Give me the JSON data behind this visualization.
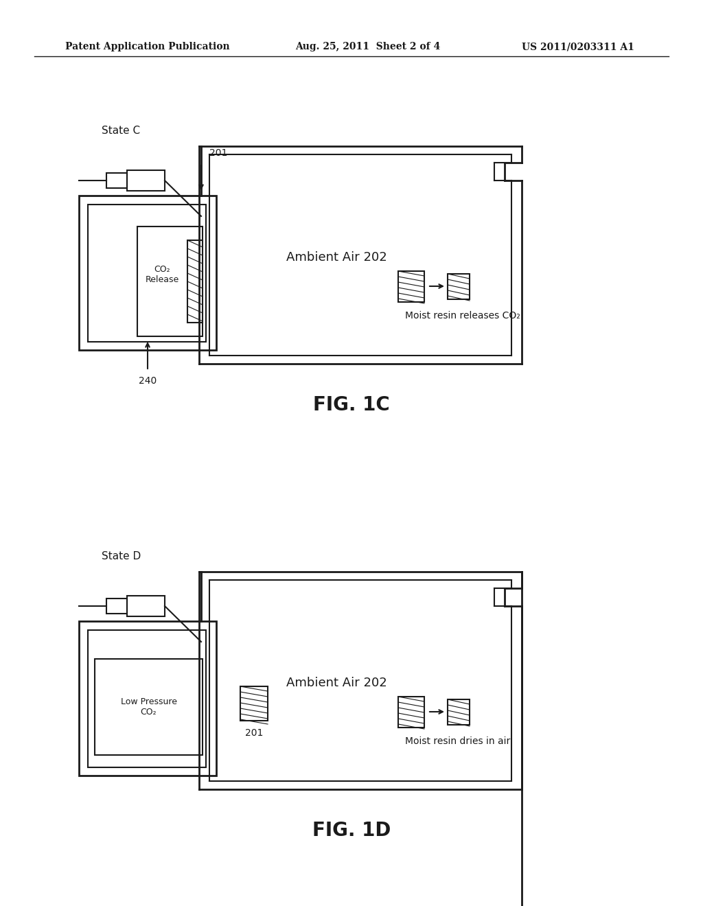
{
  "bg_color": "#ffffff",
  "header_left": "Patent Application Publication",
  "header_mid": "Aug. 25, 2011  Sheet 2 of 4",
  "header_right": "US 2011/0203311 A1",
  "fig1c_label": "FIG. 1C",
  "fig1d_label": "FIG. 1D",
  "state_c_label": "State C",
  "state_d_label": "State D",
  "ambient_air_label": "Ambient Air 202",
  "co2_release_label": "CO₂\nRelease",
  "low_pressure_label": "Low Pressure\nCO₂",
  "label_201_c": "201",
  "label_240": "240",
  "label_201_d": "201",
  "caption_c": "Moist resin releases CO₂",
  "caption_d": "Moist resin dries in air"
}
